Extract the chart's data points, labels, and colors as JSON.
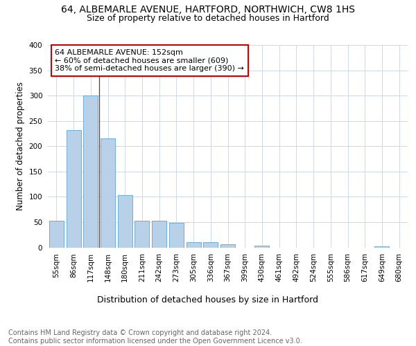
{
  "title1": "64, ALBEMARLE AVENUE, HARTFORD, NORTHWICH, CW8 1HS",
  "title2": "Size of property relative to detached houses in Hartford",
  "xlabel": "Distribution of detached houses by size in Hartford",
  "ylabel": "Number of detached properties",
  "categories": [
    "55sqm",
    "86sqm",
    "117sqm",
    "148sqm",
    "180sqm",
    "211sqm",
    "242sqm",
    "273sqm",
    "305sqm",
    "336sqm",
    "367sqm",
    "399sqm",
    "430sqm",
    "461sqm",
    "492sqm",
    "524sqm",
    "555sqm",
    "586sqm",
    "617sqm",
    "649sqm",
    "680sqm"
  ],
  "values": [
    52,
    232,
    300,
    215,
    103,
    52,
    52,
    48,
    10,
    10,
    6,
    0,
    4,
    0,
    0,
    0,
    0,
    0,
    0,
    2,
    0
  ],
  "bar_color": "#b8d0e8",
  "bar_edgecolor": "#6aaed6",
  "property_label": "64 ALBEMARLE AVENUE: 152sqm",
  "annotation_line1": "← 60% of detached houses are smaller (609)",
  "annotation_line2": "38% of semi-detached houses are larger (390) →",
  "annotation_box_color": "#ffffff",
  "annotation_box_edgecolor": "#cc0000",
  "vline_x_index": 3,
  "ylim": [
    0,
    400
  ],
  "yticks": [
    0,
    50,
    100,
    150,
    200,
    250,
    300,
    350,
    400
  ],
  "background_color": "#ffffff",
  "grid_color": "#d0d8e8",
  "footnote": "Contains HM Land Registry data © Crown copyright and database right 2024.\nContains public sector information licensed under the Open Government Licence v3.0.",
  "title1_fontsize": 10,
  "title2_fontsize": 9,
  "xlabel_fontsize": 9,
  "ylabel_fontsize": 8.5,
  "tick_fontsize": 7.5,
  "annotation_fontsize": 8,
  "footnote_fontsize": 7
}
